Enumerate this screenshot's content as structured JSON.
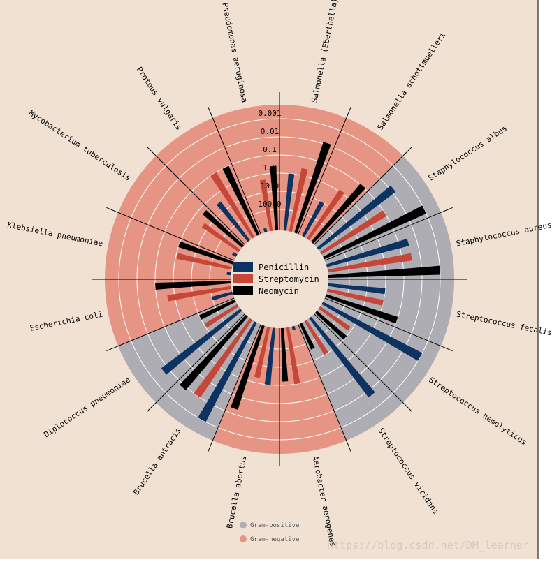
{
  "chart_data": {
    "type": "radial-bar",
    "title": "",
    "scale": "log",
    "ring_ticks": [
      "0.001",
      "0.01",
      "0.1",
      "1.0",
      "10.0",
      "100.0"
    ],
    "ring_tick_values": [
      0.001,
      0.01,
      0.1,
      1.0,
      10.0,
      100.0
    ],
    "legend": {
      "antibiotics": [
        {
          "name": "Penicillin",
          "color": "#0d3362"
        },
        {
          "name": "Streptomycin",
          "color": "#c64737"
        },
        {
          "name": "Neomycin",
          "color": "#000000"
        }
      ],
      "gram": [
        {
          "name": "Gram-positive",
          "color": "#aeadb3"
        },
        {
          "name": "Gram-negative",
          "color": "#e69584"
        }
      ]
    },
    "bacteria": [
      {
        "name": "Aerobacter aerogenes",
        "gram": "negative",
        "penicillin": 870,
        "streptomycin": 1,
        "neomycin": 1.6
      },
      {
        "name": "Brucella abortus",
        "gram": "negative",
        "penicillin": 1,
        "streptomycin": 2,
        "neomycin": 0.02
      },
      {
        "name": "Brucella antracis",
        "gram": "positive",
        "penicillin": 0.001,
        "streptomycin": 0.01,
        "neomycin": 0.007
      },
      {
        "name": "Diplococcus pneumoniae",
        "gram": "positive",
        "penicillin": 0.005,
        "streptomycin": 11,
        "neomycin": 10
      },
      {
        "name": "Escherichia coli",
        "gram": "negative",
        "penicillin": 100,
        "streptomycin": 0.4,
        "neomycin": 0.1
      },
      {
        "name": "Klebsiella pneumoniae",
        "gram": "negative",
        "penicillin": 850,
        "streptomycin": 1.2,
        "neomycin": 1
      },
      {
        "name": "Mycobacterium tuberculosis",
        "gram": "negative",
        "penicillin": 800,
        "streptomycin": 5,
        "neomycin": 2
      },
      {
        "name": "Proteus vulgaris",
        "gram": "negative",
        "penicillin": 3,
        "streptomycin": 0.1,
        "neomycin": 0.1
      },
      {
        "name": "Pseudomonas aeruginosa",
        "gram": "negative",
        "penicillin": 850,
        "streptomycin": 2,
        "neomycin": 0.4
      },
      {
        "name": "Salmonella (Eberthella) typhosa",
        "gram": "negative",
        "penicillin": 1,
        "streptomycin": 0.4,
        "neomycin": 0.008
      },
      {
        "name": "Salmonella schottmuelleri",
        "gram": "negative",
        "penicillin": 10,
        "streptomycin": 0.8,
        "neomycin": 0.09
      },
      {
        "name": "Staphylococcus albus",
        "gram": "positive",
        "penicillin": 0.007,
        "streptomycin": 0.1,
        "neomycin": 0.001
      },
      {
        "name": "Staphylococcus aureus",
        "gram": "positive",
        "penicillin": 0.03,
        "streptomycin": 0.03,
        "neomycin": 0.001
      },
      {
        "name": "Streptococcus fecalis",
        "gram": "positive",
        "penicillin": 1,
        "streptomycin": 1,
        "neomycin": 0.1
      },
      {
        "name": "Streptococcus hemolyticus",
        "gram": "positive",
        "penicillin": 0.001,
        "streptomycin": 14,
        "neomycin": 10
      },
      {
        "name": "Streptococcus viridans",
        "gram": "positive",
        "penicillin": 0.005,
        "streptomycin": 10,
        "neomycin": 40
      }
    ]
  },
  "colors": {
    "background": "#f0e1d3",
    "gram_positive": "#aeadb3",
    "gram_negative": "#e69584",
    "penicillin": "#0d3362",
    "streptomycin": "#c64737",
    "neomycin": "#000000",
    "grid": "#ffffff"
  },
  "watermark": "https://blog.csdn.net/DM_learner"
}
